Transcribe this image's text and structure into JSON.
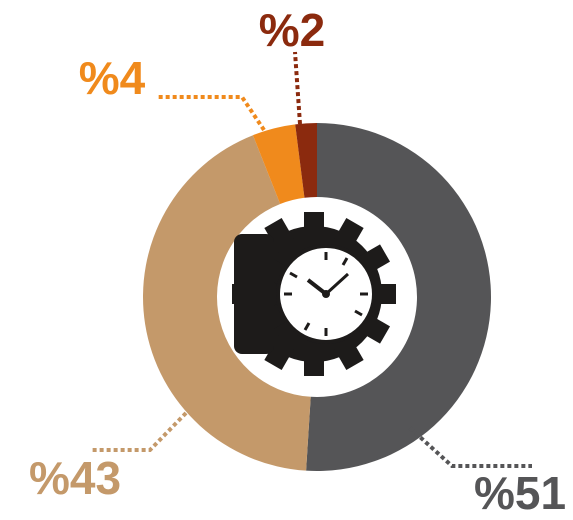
{
  "chart_data": {
    "type": "pie",
    "values": [
      51,
      43,
      4,
      2
    ],
    "value_labels": [
      "%51",
      "%43",
      "%4",
      "%2"
    ],
    "colors": [
      "#555557",
      "#c4996a",
      "#f08a1c",
      "#8b2a0e"
    ]
  }
}
